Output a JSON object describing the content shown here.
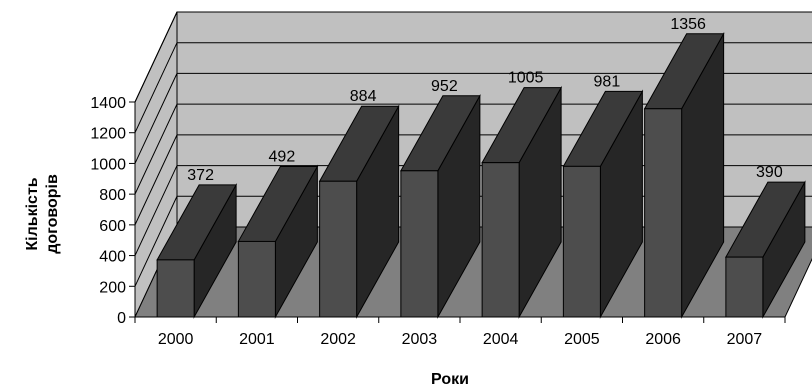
{
  "chart_data": {
    "type": "bar",
    "style": "3d-column",
    "categories": [
      "2000",
      "2001",
      "2002",
      "2003",
      "2004",
      "2005",
      "2006",
      "2007"
    ],
    "values": [
      372,
      492,
      884,
      952,
      1005,
      981,
      1356,
      390
    ],
    "data_labels": [
      "372",
      "492",
      "884",
      "952",
      "1005",
      "981",
      "1356",
      "390"
    ],
    "title": "",
    "xlabel": "Роки",
    "ylabel": "Кількість договорів",
    "ylabel_lines": [
      "Кількість",
      "договорів"
    ],
    "ylim": [
      0,
      1400
    ],
    "yticks": [
      "0",
      "200",
      "400",
      "600",
      "800",
      "1000",
      "1200",
      "1400"
    ],
    "grid": true,
    "legend": "none",
    "colors": {
      "wall": "#c0c0c0",
      "floor": "#808080",
      "bar_front": "#4d4d4d",
      "bar_side": "#262626",
      "bar_top": "#3a3a3a",
      "edge": "#000000"
    }
  }
}
